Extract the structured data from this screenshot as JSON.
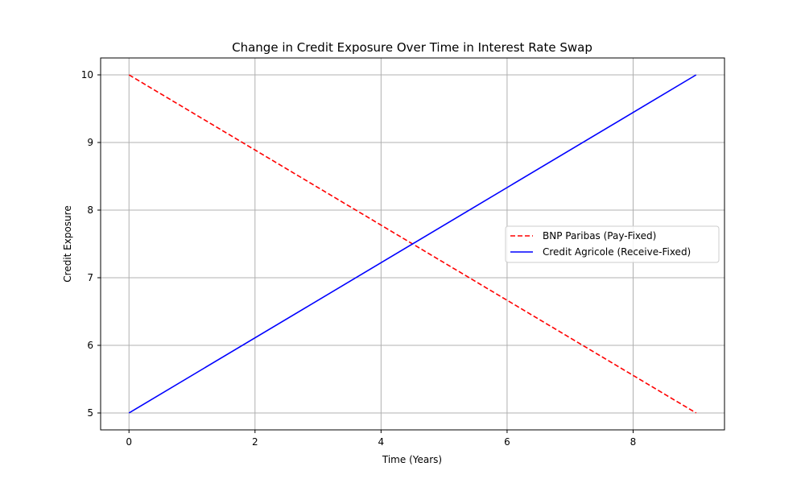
{
  "chart_data": {
    "type": "line",
    "title": "Change in Credit Exposure Over Time in Interest Rate Swap",
    "xlabel": "Time (Years)",
    "ylabel": "Credit Exposure",
    "xlim": [
      -0.45,
      9.45
    ],
    "ylim": [
      4.75,
      10.25
    ],
    "xticks": [
      0,
      2,
      4,
      6,
      8
    ],
    "yticks": [
      5,
      6,
      7,
      8,
      9,
      10
    ],
    "grid": true,
    "legend_position": "center-right",
    "series": [
      {
        "name": "BNP Paribas (Pay-Fixed)",
        "color": "#ff0000",
        "dash": true,
        "x": [
          0,
          9
        ],
        "y": [
          10,
          5
        ]
      },
      {
        "name": "Credit Agricole (Receive-Fixed)",
        "color": "#0000ff",
        "dash": false,
        "x": [
          0,
          9
        ],
        "y": [
          5,
          10
        ]
      }
    ]
  }
}
